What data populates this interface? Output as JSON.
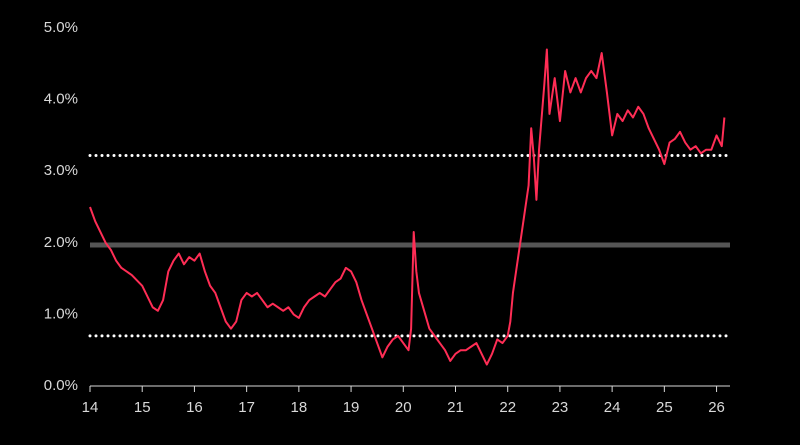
{
  "chart_data": {
    "type": "line",
    "x": [
      14.0,
      14.1,
      14.2,
      14.3,
      14.4,
      14.5,
      14.6,
      14.8,
      15.0,
      15.1,
      15.2,
      15.3,
      15.4,
      15.5,
      15.6,
      15.7,
      15.8,
      15.9,
      16.0,
      16.1,
      16.2,
      16.3,
      16.4,
      16.5,
      16.6,
      16.7,
      16.8,
      16.9,
      17.0,
      17.1,
      17.2,
      17.3,
      17.4,
      17.5,
      17.6,
      17.7,
      17.8,
      17.9,
      18.0,
      18.1,
      18.2,
      18.3,
      18.4,
      18.5,
      18.6,
      18.7,
      18.8,
      18.9,
      19.0,
      19.1,
      19.2,
      19.3,
      19.4,
      19.5,
      19.6,
      19.7,
      19.8,
      19.9,
      20.0,
      20.1,
      20.15,
      20.2,
      20.25,
      20.3,
      20.4,
      20.5,
      20.6,
      20.7,
      20.8,
      20.9,
      21.0,
      21.1,
      21.2,
      21.3,
      21.4,
      21.5,
      21.6,
      21.7,
      21.8,
      21.9,
      22.0,
      22.05,
      22.1,
      22.2,
      22.3,
      22.4,
      22.45,
      22.5,
      22.55,
      22.6,
      22.7,
      22.75,
      22.8,
      22.9,
      23.0,
      23.1,
      23.2,
      23.3,
      23.4,
      23.5,
      23.6,
      23.7,
      23.8,
      23.9,
      24.0,
      24.1,
      24.2,
      24.3,
      24.4,
      24.5,
      24.6,
      24.7,
      24.8,
      24.9,
      25.0,
      25.1,
      25.2,
      25.3,
      25.4,
      25.5,
      25.6,
      25.7,
      25.8,
      25.9,
      26.0,
      26.1,
      26.15
    ],
    "series": [
      {
        "color": "#ff2d55",
        "values": [
          2.5,
          2.3,
          2.15,
          2.0,
          1.9,
          1.75,
          1.65,
          1.55,
          1.4,
          1.25,
          1.1,
          1.05,
          1.2,
          1.6,
          1.75,
          1.85,
          1.7,
          1.8,
          1.75,
          1.85,
          1.6,
          1.4,
          1.3,
          1.1,
          0.9,
          0.8,
          0.9,
          1.2,
          1.3,
          1.25,
          1.3,
          1.2,
          1.1,
          1.15,
          1.1,
          1.05,
          1.1,
          1.0,
          0.95,
          1.1,
          1.2,
          1.25,
          1.3,
          1.25,
          1.35,
          1.45,
          1.5,
          1.65,
          1.6,
          1.45,
          1.2,
          1.0,
          0.8,
          0.6,
          0.4,
          0.55,
          0.65,
          0.7,
          0.6,
          0.5,
          0.8,
          2.15,
          1.6,
          1.3,
          1.05,
          0.8,
          0.7,
          0.6,
          0.5,
          0.35,
          0.45,
          0.5,
          0.5,
          0.55,
          0.6,
          0.45,
          0.3,
          0.45,
          0.65,
          0.6,
          0.7,
          0.9,
          1.3,
          1.8,
          2.3,
          2.8,
          3.6,
          3.2,
          2.6,
          3.3,
          4.2,
          4.7,
          3.8,
          4.3,
          3.7,
          4.4,
          4.1,
          4.3,
          4.1,
          4.3,
          4.4,
          4.3,
          4.65,
          4.1,
          3.5,
          3.8,
          3.7,
          3.85,
          3.75,
          3.9,
          3.8,
          3.6,
          3.45,
          3.3,
          3.1,
          3.4,
          3.45,
          3.55,
          3.4,
          3.3,
          3.35,
          3.25,
          3.3,
          3.3,
          3.5,
          3.35,
          3.75
        ]
      }
    ],
    "reference_lines": [
      {
        "value": 3.22,
        "style": "dotted",
        "color": "#ffffff"
      },
      {
        "value": 1.97,
        "style": "solid",
        "color": "#555555"
      },
      {
        "value": 0.7,
        "style": "dotted",
        "color": "#ffffff"
      }
    ],
    "xlim": [
      14,
      26.2
    ],
    "xticks": [
      14,
      15,
      16,
      17,
      18,
      19,
      20,
      21,
      22,
      23,
      24,
      25,
      26
    ],
    "ylim": [
      0,
      5
    ],
    "yticks": [
      {
        "value": 0,
        "label": "0.0%"
      },
      {
        "value": 1,
        "label": "1.0%"
      },
      {
        "value": 2,
        "label": "2.0%"
      },
      {
        "value": 3,
        "label": "3.0%"
      },
      {
        "value": 4,
        "label": "4.0%"
      },
      {
        "value": 5,
        "label": "5.0%"
      }
    ]
  }
}
